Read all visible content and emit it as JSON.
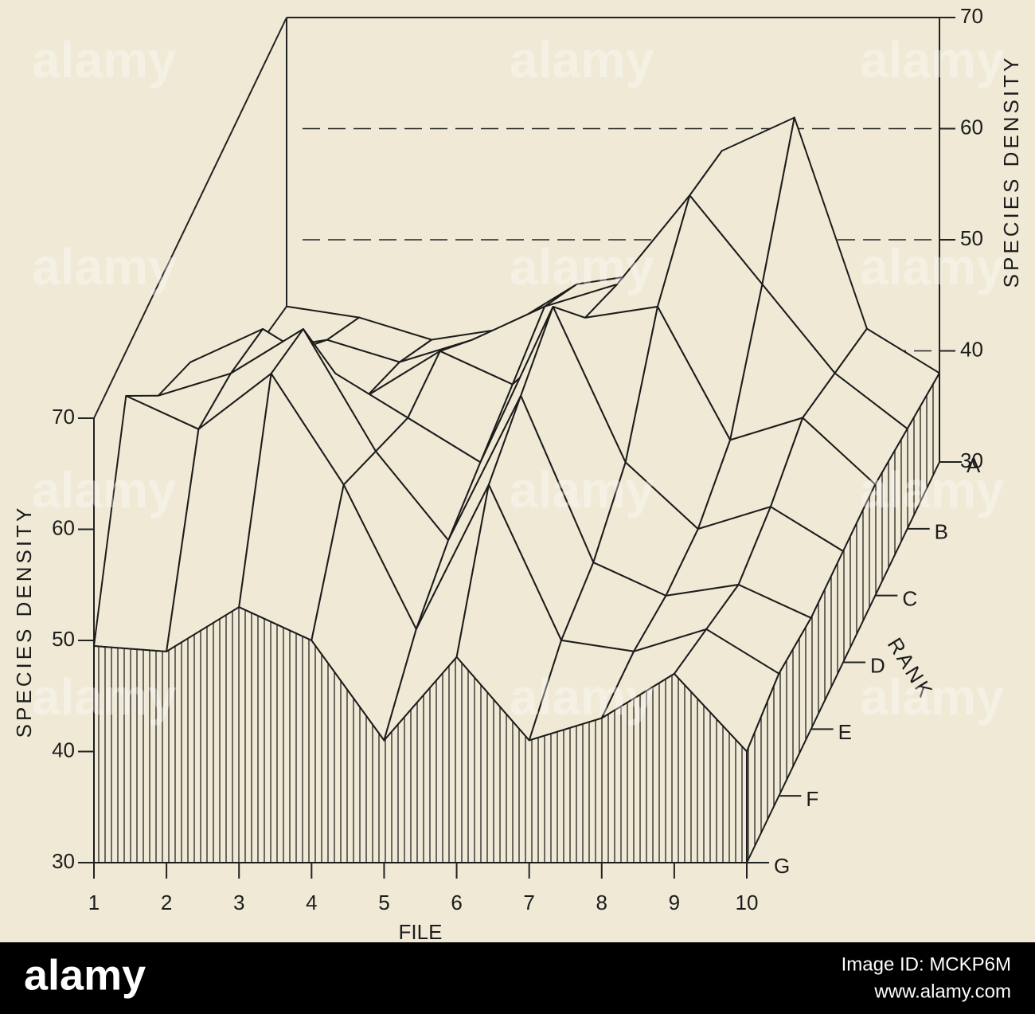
{
  "chart_data": {
    "type": "surface",
    "x_label": "FILE",
    "z_label": "SPECIES DENSITY",
    "rank_label": "RANK",
    "x": [
      1,
      2,
      3,
      4,
      5,
      6,
      7,
      8,
      9,
      10
    ],
    "ranks": [
      "A",
      "B",
      "C",
      "D",
      "E",
      "F",
      "G"
    ],
    "zlim": [
      30,
      70
    ],
    "zticks": [
      30,
      40,
      50,
      60,
      70
    ],
    "values": [
      [
        44,
        43,
        41,
        42,
        46,
        47,
        58,
        61,
        42,
        38
      ],
      [
        46,
        47,
        45,
        47,
        50,
        52,
        60,
        52,
        44,
        39
      ],
      [
        50,
        52,
        48,
        52,
        49,
        55,
        56,
        44,
        46,
        40
      ],
      [
        57,
        60,
        56,
        52,
        48,
        62,
        48,
        42,
        44,
        40
      ],
      [
        60,
        62,
        66,
        55,
        47,
        60,
        45,
        42,
        43,
        40
      ],
      [
        66,
        63,
        68,
        58,
        45,
        58,
        44,
        43,
        45,
        41
      ],
      [
        49.5,
        49,
        53,
        50,
        41,
        48.5,
        41,
        43,
        47,
        40
      ]
    ]
  },
  "watermark": "alamy",
  "footer": {
    "logo": "alamy",
    "image_id": "Image ID: MCKP6M",
    "url": "www.alamy.com"
  }
}
